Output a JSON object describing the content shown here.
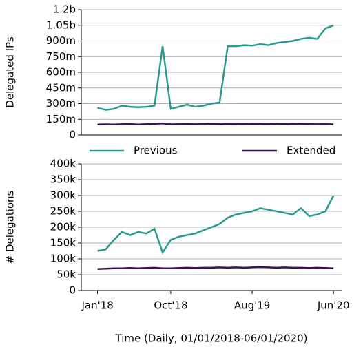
{
  "chart_data": [
    {
      "type": "line",
      "y_label": "Delegated IPs",
      "grid": true,
      "x": [
        "2018-01",
        "2018-02",
        "2018-03",
        "2018-04",
        "2018-05",
        "2018-06",
        "2018-07",
        "2018-08",
        "2018-09",
        "2018-10",
        "2018-11",
        "2018-12",
        "2019-01",
        "2019-02",
        "2019-03",
        "2019-04",
        "2019-05",
        "2019-06",
        "2019-07",
        "2019-08",
        "2019-09",
        "2019-10",
        "2019-11",
        "2019-12",
        "2020-01",
        "2020-02",
        "2020-03",
        "2020-04",
        "2020-05",
        "2020-06"
      ],
      "xlim": [
        "2017-11",
        "2020-07"
      ],
      "ylim": [
        0,
        1200
      ],
      "yticks": [
        0,
        {
          "value": 150,
          "label": "150m"
        },
        {
          "value": 300,
          "label": "300m"
        },
        {
          "value": 450,
          "label": "450m"
        },
        {
          "value": 600,
          "label": "600m"
        },
        {
          "value": 750,
          "label": "750m"
        },
        {
          "value": 900,
          "label": "900m"
        },
        {
          "value": 1050,
          "label": "1.05b"
        },
        {
          "value": 1200,
          "label": "1.2b"
        }
      ],
      "series": [
        {
          "name": "Previous",
          "color": "#2a9a8e",
          "values": [
            260,
            240,
            250,
            280,
            270,
            265,
            270,
            280,
            850,
            250,
            270,
            290,
            270,
            280,
            300,
            310,
            850,
            850,
            860,
            855,
            870,
            860,
            880,
            890,
            900,
            920,
            930,
            920,
            1020,
            1050
          ]
        },
        {
          "name": "Extended",
          "color": "#3f0f55",
          "values": [
            100,
            102,
            101,
            103,
            105,
            100,
            104,
            106,
            110,
            102,
            104,
            105,
            103,
            104,
            106,
            105,
            108,
            107,
            106,
            108,
            107,
            106,
            105,
            104,
            106,
            105,
            104,
            103,
            104,
            102
          ]
        }
      ]
    },
    {
      "type": "line",
      "y_label": "# Delegations",
      "x_label": "Time (Daily, 01/01/2018-06/01/2020)",
      "grid": true,
      "x": [
        "2018-01",
        "2018-02",
        "2018-03",
        "2018-04",
        "2018-05",
        "2018-06",
        "2018-07",
        "2018-08",
        "2018-09",
        "2018-10",
        "2018-11",
        "2018-12",
        "2019-01",
        "2019-02",
        "2019-03",
        "2019-04",
        "2019-05",
        "2019-06",
        "2019-07",
        "2019-08",
        "2019-09",
        "2019-10",
        "2019-11",
        "2019-12",
        "2020-01",
        "2020-02",
        "2020-03",
        "2020-04",
        "2020-05",
        "2020-06"
      ],
      "xlim": [
        "2017-11",
        "2020-07"
      ],
      "xticks": [
        {
          "value": "2018-01",
          "label": "Jan'18"
        },
        {
          "value": "2018-10",
          "label": "Oct'18"
        },
        {
          "value": "2019-08",
          "label": "Aug'19"
        },
        {
          "value": "2020-06",
          "label": "Jun'20"
        }
      ],
      "ylim": [
        0,
        400
      ],
      "yticks": [
        0,
        {
          "value": 50,
          "label": "50k"
        },
        {
          "value": 100,
          "label": "100k"
        },
        {
          "value": 150,
          "label": "150k"
        },
        {
          "value": 200,
          "label": "200k"
        },
        {
          "value": 250,
          "label": "250k"
        },
        {
          "value": 300,
          "label": "300k"
        },
        {
          "value": 350,
          "label": "350k"
        },
        {
          "value": 400,
          "label": "400k"
        }
      ],
      "series": [
        {
          "color": "#2a9a8e",
          "values": [
            125,
            130,
            160,
            185,
            175,
            185,
            180,
            195,
            120,
            160,
            170,
            175,
            180,
            190,
            200,
            210,
            230,
            240,
            245,
            250,
            260,
            255,
            250,
            245,
            240,
            260,
            235,
            240,
            250,
            300
          ]
        },
        {
          "color": "#3f0f55",
          "values": [
            68,
            69,
            70,
            70,
            71,
            70,
            71,
            72,
            70,
            70,
            71,
            72,
            71,
            72,
            72,
            73,
            72,
            73,
            72,
            73,
            74,
            73,
            72,
            73,
            72,
            72,
            71,
            72,
            71,
            70
          ]
        }
      ]
    }
  ]
}
